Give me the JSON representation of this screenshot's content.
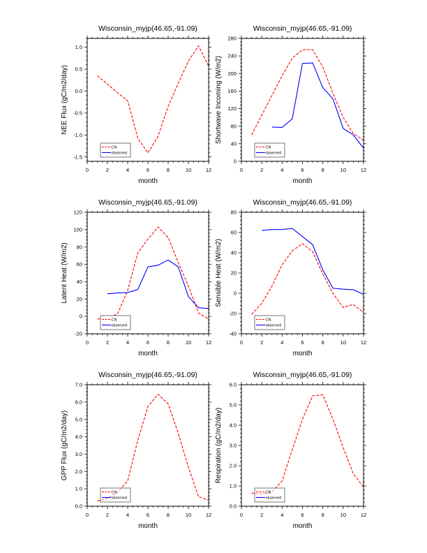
{
  "chart_data": [
    {
      "type": "line",
      "title": "Wisconsin_myjp(46.65,-91.09)",
      "xlabel": "month",
      "ylabel": "NEE Flux (gC/m2/day)",
      "xlim": [
        0,
        12
      ],
      "ylim": [
        -1.6,
        1.2
      ],
      "xticks": [
        0,
        2,
        4,
        6,
        8,
        10,
        12
      ],
      "yticks": [
        -1.5,
        -1.0,
        -0.5,
        0.0,
        0.5,
        1.0
      ],
      "ytick_labels": [
        "-1.5",
        "-1.0",
        "-0.5",
        "0.0",
        "0.5",
        "1.0"
      ],
      "legend": [
        "CN",
        "observed"
      ],
      "legend_placement": "bottom-left",
      "legend_filled": false,
      "series": [
        {
          "name": "CN",
          "color": "#ff0000",
          "dash": true,
          "x": [
            1,
            2,
            3,
            4,
            5,
            6,
            7,
            8,
            9,
            10,
            11,
            12
          ],
          "values": [
            0.35,
            0.16,
            -0.04,
            -0.22,
            -1.07,
            -1.41,
            -1.03,
            -0.35,
            0.18,
            0.68,
            1.03,
            0.57
          ]
        },
        {
          "name": "observed",
          "color": "#0000ff",
          "dash": false,
          "x": [],
          "values": []
        }
      ]
    },
    {
      "type": "line",
      "title": "Wisconsin_myjp(46.65,-91.09)",
      "xlabel": "month",
      "ylabel": "Shortwave Incoming (W/m2)",
      "xlim": [
        0,
        12
      ],
      "ylim": [
        0,
        280
      ],
      "xticks": [
        0,
        2,
        4,
        6,
        8,
        10,
        12
      ],
      "yticks": [
        0,
        40,
        80,
        120,
        160,
        200,
        240,
        280
      ],
      "ytick_labels": [
        "0",
        "40",
        "80",
        "120",
        "160",
        "200",
        "240",
        "280"
      ],
      "legend": [
        "CN",
        "observed"
      ],
      "legend_placement": "bottom-left",
      "legend_filled": false,
      "series": [
        {
          "name": "CN",
          "color": "#ff0000",
          "dash": true,
          "x": [
            1,
            2,
            3,
            4,
            5,
            6,
            7,
            8,
            9,
            10,
            11,
            12
          ],
          "values": [
            60,
            105,
            150,
            195,
            235,
            254,
            254,
            215,
            155,
            100,
            63,
            48
          ]
        },
        {
          "name": "observed",
          "color": "#0000ff",
          "dash": false,
          "x": [
            3,
            4,
            5,
            6,
            7,
            8,
            9,
            10,
            11,
            12
          ],
          "values": [
            78,
            77,
            97,
            223,
            224,
            168,
            142,
            75,
            60,
            30
          ]
        }
      ]
    },
    {
      "type": "line",
      "title": "Wisconsin_myjp(46.65,-91.09)",
      "xlabel": "month",
      "ylabel": "Latent Heat (W/m2)",
      "xlim": [
        0,
        12
      ],
      "ylim": [
        -20,
        120
      ],
      "xticks": [
        0,
        2,
        4,
        6,
        8,
        10,
        12
      ],
      "yticks": [
        -20,
        0,
        20,
        40,
        60,
        80,
        100,
        120
      ],
      "ytick_labels": [
        "-20",
        "0",
        "20",
        "40",
        "60",
        "80",
        "100",
        "120"
      ],
      "legend": [
        "CN",
        "observed"
      ],
      "legend_placement": "bottom-left",
      "legend_filled": false,
      "series": [
        {
          "name": "CN",
          "color": "#ff0000",
          "dash": true,
          "x": [
            1,
            2,
            3,
            4,
            5,
            6,
            7,
            8,
            9,
            10,
            11,
            12
          ],
          "values": [
            -3,
            -2,
            3,
            30,
            73,
            89,
            103,
            91,
            62,
            35,
            4,
            -3
          ]
        },
        {
          "name": "observed",
          "color": "#0000ff",
          "dash": false,
          "x": [
            2,
            3,
            4,
            5,
            6,
            7,
            8,
            9,
            10,
            11,
            12
          ],
          "values": [
            26,
            27,
            27.5,
            31,
            57,
            59,
            65,
            57,
            23,
            10,
            9
          ]
        }
      ]
    },
    {
      "type": "line",
      "title": "Wisconsin_myjp(46.65,-91.09)",
      "xlabel": "month",
      "ylabel": "Sensible Heat (W/m2)",
      "xlim": [
        0,
        12
      ],
      "ylim": [
        -40,
        80
      ],
      "xticks": [
        0,
        2,
        4,
        6,
        8,
        10,
        12
      ],
      "yticks": [
        -40,
        -20,
        0,
        20,
        40,
        60,
        80
      ],
      "ytick_labels": [
        "-40",
        "-20",
        "0",
        "20",
        "40",
        "60",
        "80"
      ],
      "legend": [
        "CN",
        "observed"
      ],
      "legend_placement": "bottom-left",
      "legend_filled": false,
      "series": [
        {
          "name": "CN",
          "color": "#ff0000",
          "dash": true,
          "x": [
            1,
            2,
            3,
            4,
            5,
            6,
            7,
            8,
            9,
            10,
            11,
            12
          ],
          "values": [
            -21,
            -10,
            7,
            28,
            42,
            49,
            41,
            19,
            0,
            -14,
            -11,
            -19
          ]
        },
        {
          "name": "observed",
          "color": "#0000ff",
          "dash": false,
          "x": [
            2,
            3,
            4,
            5,
            6,
            7,
            8,
            9,
            10,
            11,
            12
          ],
          "values": [
            62,
            63,
            63,
            64,
            56,
            48,
            23,
            5,
            4,
            3.5,
            -1
          ]
        }
      ]
    },
    {
      "type": "line",
      "title": "Wisconsin_myjp(46.65,-91.09)",
      "xlabel": "month",
      "ylabel": "GPP Flux (gC/m2/day)",
      "xlim": [
        0,
        12
      ],
      "ylim": [
        0,
        7
      ],
      "xticks": [
        0,
        2,
        4,
        6,
        8,
        10,
        12
      ],
      "yticks": [
        0,
        1,
        2,
        3,
        4,
        5,
        6,
        7
      ],
      "ytick_labels": [
        "0.0",
        "1.0",
        "2.0",
        "3.0",
        "4.0",
        "5.0",
        "6.0",
        "7.0"
      ],
      "legend": [
        "CN",
        "observed"
      ],
      "legend_placement": "bottom-left",
      "legend_filled": true,
      "series": [
        {
          "name": "CN",
          "color": "#ff0000",
          "dash": true,
          "x": [
            1,
            2,
            3,
            4,
            5,
            6,
            7,
            8,
            9,
            10,
            11,
            12
          ],
          "values": [
            0.3,
            0.45,
            0.8,
            1.45,
            3.8,
            5.75,
            6.45,
            5.9,
            4.2,
            2.25,
            0.55,
            0.35
          ]
        },
        {
          "name": "observed",
          "color": "#0000ff",
          "dash": false,
          "x": [],
          "values": []
        }
      ]
    },
    {
      "type": "line",
      "title": "Wisconsin_myjp(46.65,-91.09)",
      "xlabel": "month",
      "ylabel": "Respiration (gC/m2/day)",
      "xlim": [
        0,
        12
      ],
      "ylim": [
        0,
        6
      ],
      "xticks": [
        0,
        2,
        4,
        6,
        8,
        10,
        12
      ],
      "yticks": [
        0,
        1,
        2,
        3,
        4,
        5,
        6
      ],
      "ytick_labels": [
        "0.0",
        "1.0",
        "2.0",
        "3.0",
        "4.0",
        "5.0",
        "6.0"
      ],
      "legend": [
        "CN",
        "observed"
      ],
      "legend_placement": "bottom-left",
      "legend_filled": true,
      "series": [
        {
          "name": "CN",
          "color": "#ff0000",
          "dash": true,
          "x": [
            1,
            2,
            3,
            4,
            5,
            6,
            7,
            8,
            9,
            10,
            11,
            12
          ],
          "values": [
            0.65,
            0.6,
            0.7,
            1.25,
            2.8,
            4.3,
            5.45,
            5.5,
            4.3,
            2.9,
            1.6,
            0.95
          ]
        },
        {
          "name": "observed",
          "color": "#0000ff",
          "dash": false,
          "x": [],
          "values": []
        }
      ]
    }
  ]
}
